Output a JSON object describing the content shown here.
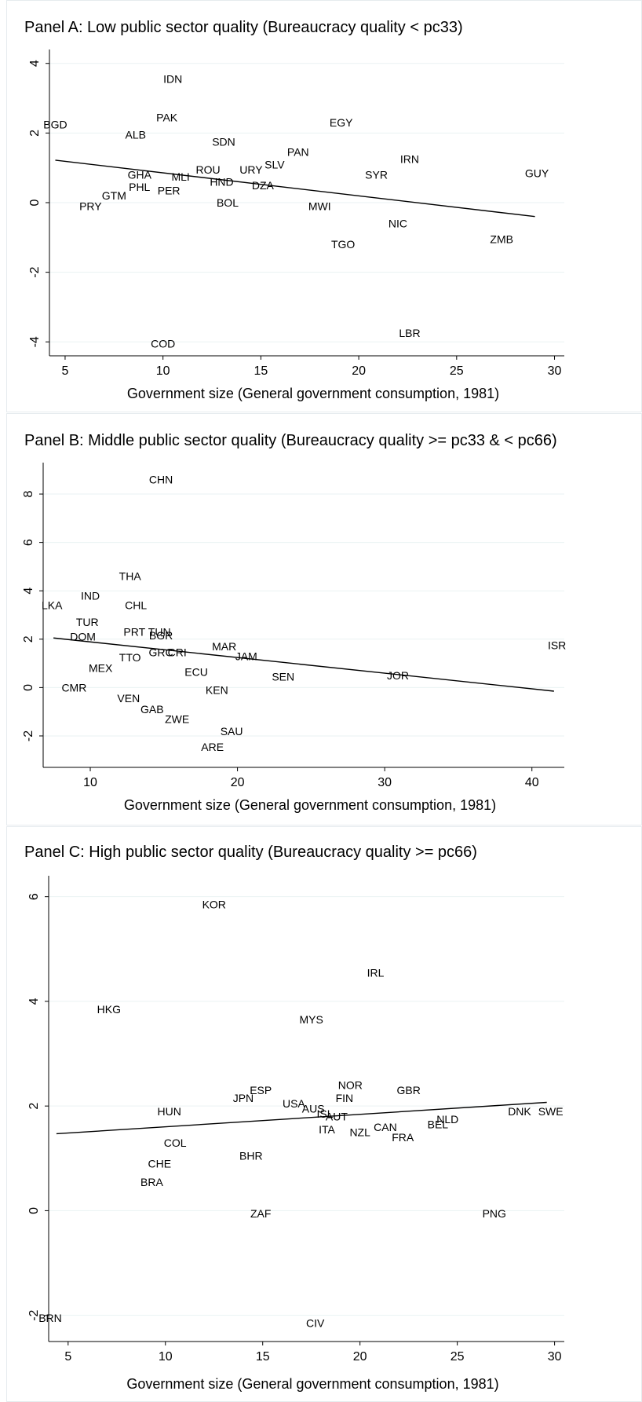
{
  "chart_data": [
    {
      "type": "scatter",
      "title": "Panel A: Low public sector quality (Bureaucracy quality < pc33)",
      "xlabel": "Government size (General government consumption, 1981)",
      "ylabel": "",
      "xlim": [
        4.2,
        30.5
      ],
      "ylim": [
        -4.4,
        4.4
      ],
      "xticks": [
        5,
        10,
        15,
        20,
        25,
        30
      ],
      "yticks": [
        -4,
        -2,
        0,
        2,
        4
      ],
      "grid": true,
      "fit_line": {
        "x": [
          4.5,
          29
        ],
        "y": [
          1.22,
          -0.4
        ]
      },
      "points": [
        {
          "label": "IDN",
          "x": 10.5,
          "y": 3.55
        },
        {
          "label": "PAK",
          "x": 10.2,
          "y": 2.45
        },
        {
          "label": "BGD",
          "x": 4.5,
          "y": 2.25
        },
        {
          "label": "EGY",
          "x": 19.1,
          "y": 2.3
        },
        {
          "label": "ALB",
          "x": 8.6,
          "y": 1.95
        },
        {
          "label": "SDN",
          "x": 13.1,
          "y": 1.75
        },
        {
          "label": "PAN",
          "x": 16.9,
          "y": 1.45
        },
        {
          "label": "IRN",
          "x": 22.6,
          "y": 1.25
        },
        {
          "label": "SLV",
          "x": 15.7,
          "y": 1.1
        },
        {
          "label": "URY",
          "x": 14.5,
          "y": 0.95
        },
        {
          "label": "ROU",
          "x": 12.3,
          "y": 0.95
        },
        {
          "label": "GHA",
          "x": 8.8,
          "y": 0.8
        },
        {
          "label": "MLI",
          "x": 10.9,
          "y": 0.75
        },
        {
          "label": "SYR",
          "x": 20.9,
          "y": 0.8
        },
        {
          "label": "GUY",
          "x": 29.1,
          "y": 0.85
        },
        {
          "label": "HND",
          "x": 13.0,
          "y": 0.6
        },
        {
          "label": "DZA",
          "x": 15.1,
          "y": 0.5
        },
        {
          "label": "PHL",
          "x": 8.8,
          "y": 0.45
        },
        {
          "label": "PER",
          "x": 10.3,
          "y": 0.35
        },
        {
          "label": "GTM",
          "x": 7.5,
          "y": 0.2
        },
        {
          "label": "BOL",
          "x": 13.3,
          "y": 0.0
        },
        {
          "label": "PRY",
          "x": 6.3,
          "y": -0.1
        },
        {
          "label": "MWI",
          "x": 18.0,
          "y": -0.1
        },
        {
          "label": "NIC",
          "x": 22.0,
          "y": -0.6
        },
        {
          "label": "ZMB",
          "x": 27.3,
          "y": -1.05
        },
        {
          "label": "TGO",
          "x": 19.2,
          "y": -1.2
        },
        {
          "label": "LBR",
          "x": 22.6,
          "y": -3.75
        },
        {
          "label": "COD",
          "x": 10.0,
          "y": -4.05
        }
      ]
    },
    {
      "type": "scatter",
      "title": "Panel B: Middle public sector quality (Bureaucracy quality >= pc33 & < pc66)",
      "xlabel": "Government size (General government consumption, 1981)",
      "ylabel": "",
      "xlim": [
        6.8,
        42.2
      ],
      "ylim": [
        -3.3,
        9.3
      ],
      "xticks": [
        10,
        20,
        30,
        40
      ],
      "yticks": [
        -2,
        0,
        2,
        4,
        6,
        8
      ],
      "grid": true,
      "fit_line": {
        "x": [
          7.5,
          41.5
        ],
        "y": [
          2.05,
          -0.15
        ]
      },
      "points": [
        {
          "label": "CHN",
          "x": 14.8,
          "y": 8.6
        },
        {
          "label": "THA",
          "x": 12.7,
          "y": 4.6
        },
        {
          "label": "IND",
          "x": 10.0,
          "y": 3.8
        },
        {
          "label": "LKA",
          "x": 7.4,
          "y": 3.4
        },
        {
          "label": "CHL",
          "x": 13.1,
          "y": 3.4
        },
        {
          "label": "TUR",
          "x": 9.8,
          "y": 2.7
        },
        {
          "label": "PRT",
          "x": 13.0,
          "y": 2.3
        },
        {
          "label": "TUN",
          "x": 14.7,
          "y": 2.3
        },
        {
          "label": "BGR",
          "x": 14.8,
          "y": 2.15
        },
        {
          "label": "DOM",
          "x": 9.5,
          "y": 2.1
        },
        {
          "label": "ISR",
          "x": 41.7,
          "y": 1.75
        },
        {
          "label": "MAR",
          "x": 19.1,
          "y": 1.7
        },
        {
          "label": "GRC",
          "x": 14.8,
          "y": 1.45
        },
        {
          "label": "CRI",
          "x": 15.9,
          "y": 1.45
        },
        {
          "label": "JAM",
          "x": 20.6,
          "y": 1.3
        },
        {
          "label": "TTO",
          "x": 12.7,
          "y": 1.25
        },
        {
          "label": "MEX",
          "x": 10.7,
          "y": 0.8
        },
        {
          "label": "ECU",
          "x": 17.2,
          "y": 0.65
        },
        {
          "label": "JOR",
          "x": 30.9,
          "y": 0.5
        },
        {
          "label": "SEN",
          "x": 23.1,
          "y": 0.45
        },
        {
          "label": "CMR",
          "x": 8.9,
          "y": 0.0
        },
        {
          "label": "KEN",
          "x": 18.6,
          "y": -0.1
        },
        {
          "label": "VEN",
          "x": 12.6,
          "y": -0.45
        },
        {
          "label": "GAB",
          "x": 14.2,
          "y": -0.9
        },
        {
          "label": "ZWE",
          "x": 15.9,
          "y": -1.3
        },
        {
          "label": "SAU",
          "x": 19.6,
          "y": -1.8
        },
        {
          "label": "ARE",
          "x": 18.3,
          "y": -2.45
        }
      ]
    },
    {
      "type": "scatter",
      "title": "Panel C: High public sector quality (Bureaucracy quality >= pc66)",
      "xlabel": "Government size (General government consumption, 1981)",
      "ylabel": "",
      "xlim": [
        4.0,
        30.5
      ],
      "ylim": [
        -2.5,
        6.4
      ],
      "xticks": [
        5,
        10,
        15,
        20,
        25,
        30
      ],
      "yticks": [
        -2,
        0,
        2,
        4,
        6
      ],
      "grid": true,
      "fit_line": {
        "x": [
          4.4,
          29.6
        ],
        "y": [
          1.47,
          2.07
        ]
      },
      "points": [
        {
          "label": "KOR",
          "x": 12.5,
          "y": 5.85
        },
        {
          "label": "IRL",
          "x": 20.8,
          "y": 4.55
        },
        {
          "label": "HKG",
          "x": 7.1,
          "y": 3.85
        },
        {
          "label": "MYS",
          "x": 17.5,
          "y": 3.65
        },
        {
          "label": "NOR",
          "x": 19.5,
          "y": 2.4
        },
        {
          "label": "ESP",
          "x": 14.9,
          "y": 2.3
        },
        {
          "label": "GBR",
          "x": 22.5,
          "y": 2.3
        },
        {
          "label": "JPN",
          "x": 14.0,
          "y": 2.15
        },
        {
          "label": "FIN",
          "x": 19.2,
          "y": 2.15
        },
        {
          "label": "USA",
          "x": 16.6,
          "y": 2.05
        },
        {
          "label": "AUS",
          "x": 17.6,
          "y": 1.95
        },
        {
          "label": "ISL",
          "x": 18.2,
          "y": 1.85
        },
        {
          "label": "AUT",
          "x": 18.8,
          "y": 1.8
        },
        {
          "label": "HUN",
          "x": 10.2,
          "y": 1.9
        },
        {
          "label": "DNK",
          "x": 28.2,
          "y": 1.9
        },
        {
          "label": "SWE",
          "x": 29.8,
          "y": 1.9
        },
        {
          "label": "NLD",
          "x": 24.5,
          "y": 1.75
        },
        {
          "label": "BEL",
          "x": 24.0,
          "y": 1.65
        },
        {
          "label": "CAN",
          "x": 21.3,
          "y": 1.6
        },
        {
          "label": "ITA",
          "x": 18.3,
          "y": 1.55
        },
        {
          "label": "NZL",
          "x": 20.0,
          "y": 1.5
        },
        {
          "label": "FRA",
          "x": 22.2,
          "y": 1.4
        },
        {
          "label": "COL",
          "x": 10.5,
          "y": 1.3
        },
        {
          "label": "BHR",
          "x": 14.4,
          "y": 1.05
        },
        {
          "label": "CHE",
          "x": 9.7,
          "y": 0.9
        },
        {
          "label": "BRA",
          "x": 9.3,
          "y": 0.55
        },
        {
          "label": "ZAF",
          "x": 14.9,
          "y": -0.05
        },
        {
          "label": "PNG",
          "x": 26.9,
          "y": -0.05
        },
        {
          "label": "BRN",
          "x": 3.9,
          "y": -2.05
        },
        {
          "label": "CIV",
          "x": 17.7,
          "y": -2.15
        }
      ]
    }
  ]
}
